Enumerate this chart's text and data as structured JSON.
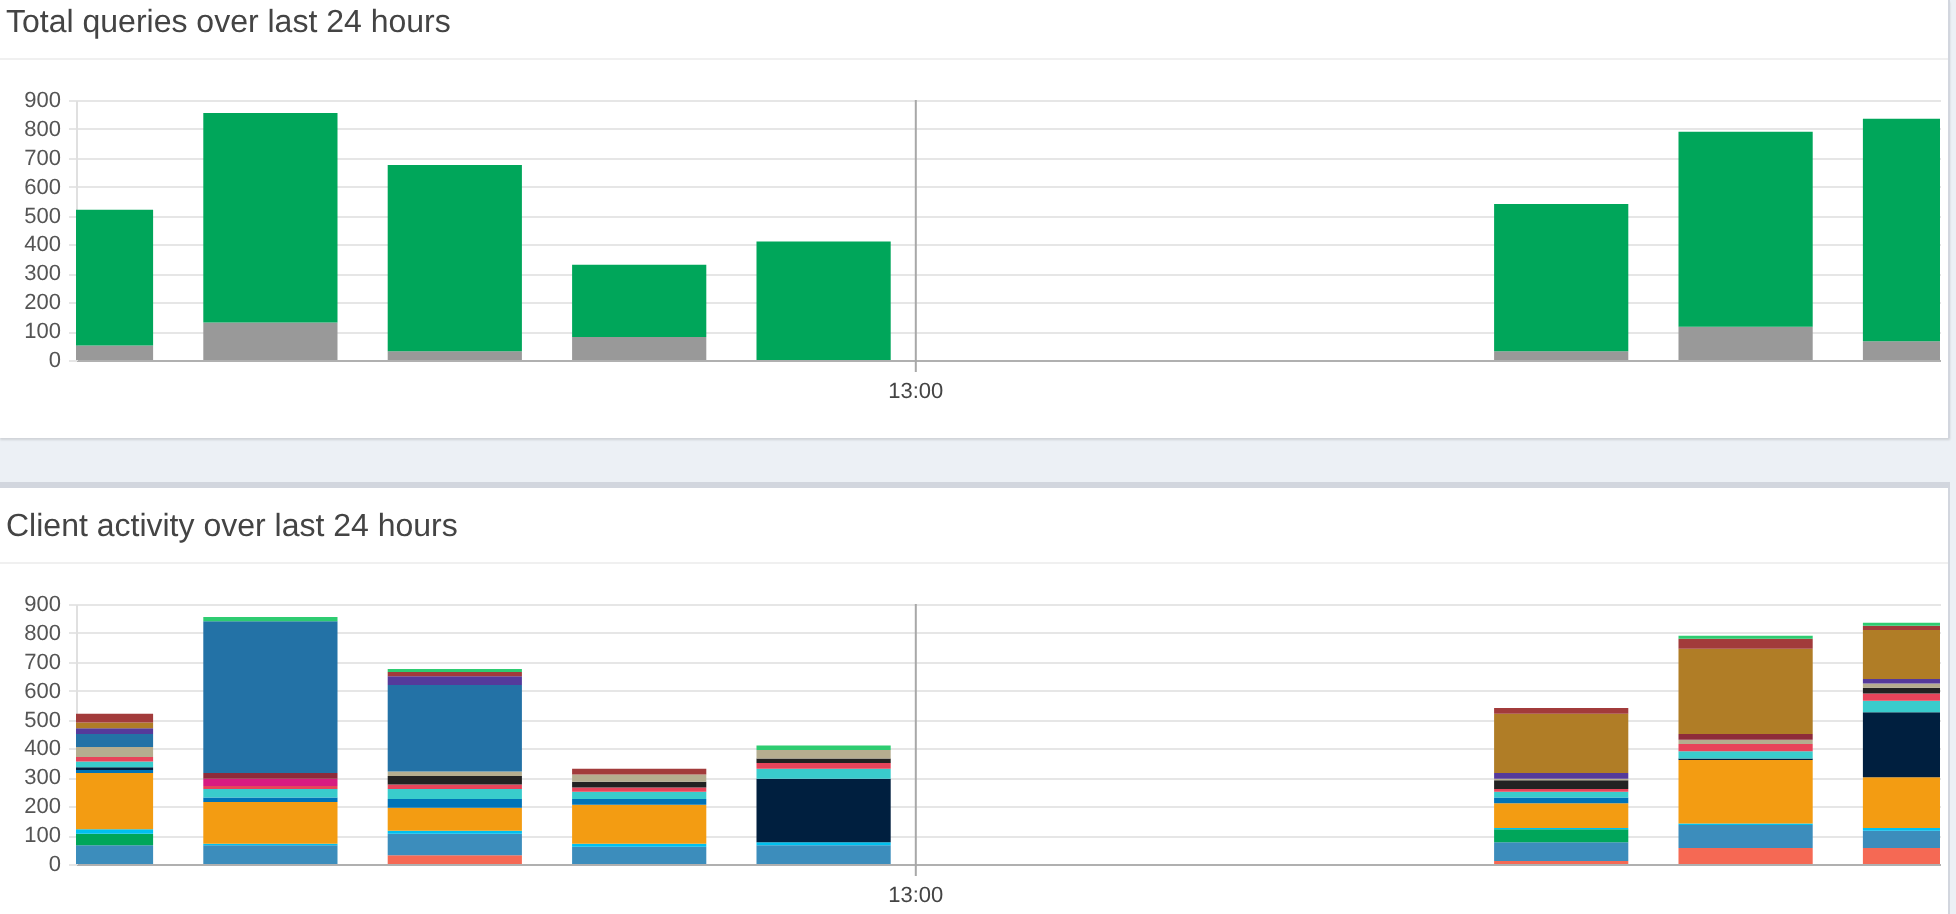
{
  "chart_data": [
    {
      "type": "bar",
      "title": "Total queries over last 24 hours",
      "stacked": true,
      "categories": [
        null,
        null,
        null,
        null,
        null,
        null,
        null,
        null,
        null,
        null,
        null
      ],
      "series": [
        {
          "color": "#999999",
          "values": [
            50,
            130,
            30,
            80,
            null,
            null,
            null,
            null,
            30,
            115,
            65
          ]
        },
        {
          "color": "#00a65a",
          "values": [
            470,
            725,
            645,
            250,
            410,
            null,
            null,
            null,
            510,
            675,
            770
          ]
        }
      ],
      "ylim": [
        0,
        900
      ],
      "yticks": [
        0,
        100,
        200,
        300,
        400,
        500,
        600,
        700,
        800,
        900
      ],
      "grid": "y",
      "tick_labels": "y",
      "annotations": [
        "13:00"
      ]
    },
    {
      "type": "bar",
      "title": "Client activity over last 24 hours",
      "stacked": true,
      "categories": [
        null,
        null,
        null,
        null,
        null,
        null,
        null,
        null,
        null,
        null,
        null
      ],
      "series": [
        {
          "color": "#f56954",
          "values": [
            null,
            null,
            30,
            null,
            null,
            null,
            null,
            null,
            10,
            55,
            55
          ]
        },
        {
          "color": "#3c8dbc",
          "values": [
            65,
            65,
            75,
            60,
            65,
            null,
            null,
            null,
            65,
            80,
            60
          ]
        },
        {
          "color": "#00a65a",
          "values": [
            40,
            null,
            null,
            null,
            null,
            null,
            null,
            null,
            45,
            null,
            null
          ]
        },
        {
          "color": "#00c0ef",
          "values": [
            15,
            5,
            10,
            10,
            10,
            null,
            null,
            null,
            5,
            5,
            10
          ]
        },
        {
          "color": "#f39c12",
          "values": [
            195,
            145,
            80,
            135,
            null,
            null,
            null,
            null,
            85,
            220,
            175
          ]
        },
        {
          "color": "#0073b7",
          "values": [
            10,
            15,
            30,
            20,
            null,
            null,
            null,
            null,
            20,
            null,
            null
          ]
        },
        {
          "color": "#001f3f",
          "values": [
            10,
            null,
            null,
            null,
            220,
            null,
            null,
            null,
            null,
            5,
            225
          ]
        },
        {
          "color": "#39cccc",
          "values": [
            20,
            30,
            35,
            25,
            35,
            null,
            null,
            null,
            20,
            25,
            40
          ]
        },
        {
          "color": "#e8445a",
          "values": [
            15,
            10,
            15,
            15,
            20,
            null,
            null,
            null,
            10,
            25,
            25
          ]
        },
        {
          "color": "#d81b80",
          "values": [
            null,
            25,
            null,
            null,
            null,
            null,
            null,
            null,
            null,
            null,
            null
          ]
        },
        {
          "color": "#222222",
          "values": [
            null,
            null,
            30,
            20,
            15,
            null,
            null,
            null,
            30,
            null,
            20
          ]
        },
        {
          "color": "#b5ad8f",
          "values": [
            35,
            null,
            15,
            25,
            30,
            null,
            null,
            null,
            5,
            15,
            15
          ]
        },
        {
          "color": "#8e2b3a",
          "values": [
            null,
            20,
            null,
            null,
            null,
            null,
            null,
            null,
            null,
            20,
            null
          ]
        },
        {
          "color": "#2372a6",
          "values": [
            45,
            525,
            300,
            null,
            null,
            null,
            null,
            null,
            null,
            null,
            null
          ]
        },
        {
          "color": "#553a9b",
          "values": [
            20,
            null,
            30,
            null,
            null,
            null,
            null,
            null,
            20,
            null,
            15
          ]
        },
        {
          "color": "#b07d26",
          "values": [
            20,
            null,
            null,
            null,
            null,
            null,
            null,
            null,
            205,
            295,
            170
          ]
        },
        {
          "color": "#a23b3b",
          "values": [
            30,
            null,
            15,
            20,
            null,
            null,
            null,
            null,
            20,
            35,
            15
          ]
        },
        {
          "color": "#2ecc71",
          "values": [
            null,
            15,
            10,
            null,
            15,
            null,
            null,
            null,
            null,
            10,
            10
          ]
        }
      ],
      "ylim": [
        0,
        900
      ],
      "yticks": [
        0,
        100,
        200,
        300,
        400,
        500,
        600,
        700,
        800,
        900
      ],
      "grid": "y",
      "tick_labels": "y",
      "annotations": [
        "13:00"
      ]
    }
  ]
}
